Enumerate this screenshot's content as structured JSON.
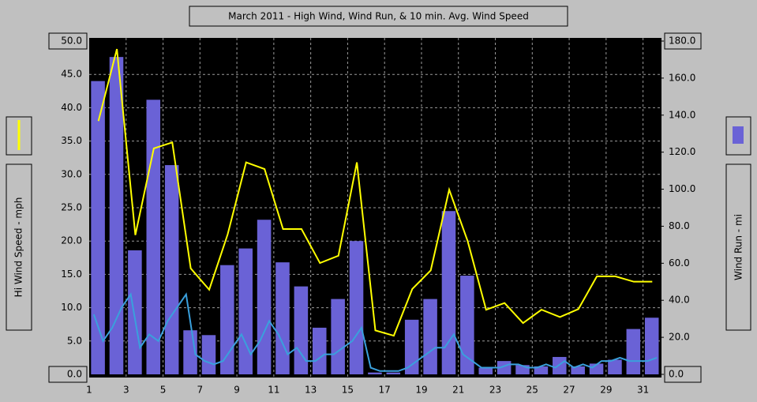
{
  "chart_data": {
    "type": "combo",
    "title": "March 2011 - High Wind, Wind Run, & 10 min. Avg. Wind Speed",
    "ylabel": "Hi Wind Speed - mph",
    "y2label": "Wind Run - mi",
    "xlim": [
      1,
      32
    ],
    "xticks": [
      1,
      3,
      5,
      7,
      9,
      11,
      13,
      15,
      17,
      19,
      21,
      23,
      25,
      27,
      29,
      31
    ],
    "ylim": [
      0,
      50
    ],
    "yticks": [
      {
        "value": 0,
        "label": "0.0"
      },
      {
        "value": 5,
        "label": "5.0"
      },
      {
        "value": 10,
        "label": "10.0"
      },
      {
        "value": 15,
        "label": "15.0"
      },
      {
        "value": 20,
        "label": "20.0"
      },
      {
        "value": 25,
        "label": "25.0"
      },
      {
        "value": 30,
        "label": "30.0"
      },
      {
        "value": 35,
        "label": "35.0"
      },
      {
        "value": 40,
        "label": "40.0"
      },
      {
        "value": 45,
        "label": "45.0"
      },
      {
        "value": 50,
        "label": "50.0"
      }
    ],
    "y2lim": [
      0,
      180
    ],
    "y2ticks": [
      {
        "value": 0,
        "label": "0.0"
      },
      {
        "value": 20,
        "label": "20.0"
      },
      {
        "value": 40,
        "label": "40.0"
      },
      {
        "value": 60,
        "label": "60.0"
      },
      {
        "value": 80,
        "label": "80.0"
      },
      {
        "value": 100,
        "label": "100.0"
      },
      {
        "value": 120,
        "label": "120.0"
      },
      {
        "value": 140,
        "label": "140.0"
      },
      {
        "value": 160,
        "label": "160.0"
      },
      {
        "value": 180,
        "label": "180.0"
      }
    ],
    "grid": true,
    "series": [
      {
        "type": "bar",
        "axis": "y2",
        "color": "#6a62d6",
        "x": [
          1,
          2,
          3,
          4,
          5,
          6,
          7,
          8,
          9,
          10,
          11,
          12,
          13,
          14,
          15,
          16,
          17,
          18,
          19,
          20,
          21,
          22,
          23,
          24,
          25,
          26,
          27,
          28,
          29,
          30,
          31
        ],
        "values": [
          158.4,
          171.4,
          67,
          148.3,
          113,
          23.8,
          21.2,
          59,
          68,
          83.5,
          60.5,
          47.5,
          25.2,
          40.7,
          72,
          1,
          1,
          29.5,
          40.7,
          88.2,
          53.3,
          3.6,
          7.2,
          5,
          4.3,
          9.4,
          4.3,
          5.8,
          7.9,
          24.5,
          30.6
        ]
      },
      {
        "type": "line",
        "axis": "y",
        "color": "#ffff00",
        "x": [
          1.5,
          2.5,
          3.5,
          4.5,
          5.5,
          6.5,
          7.5,
          8.5,
          9.5,
          10.5,
          11.5,
          12.5,
          13.5,
          14.5,
          15.5,
          16.5,
          17.5,
          18.5,
          19.5,
          20.5,
          21.5,
          22.5,
          23.5,
          24.5,
          25.5,
          26.5,
          27.5,
          28.5,
          29.5,
          30.5,
          31.5
        ],
        "values": [
          38.0,
          48.8,
          20.9,
          33.9,
          34.8,
          15.9,
          12.7,
          21.0,
          31.8,
          30.8,
          21.8,
          21.8,
          16.7,
          17.8,
          31.8,
          6.6,
          5.8,
          12.8,
          15.6,
          27.7,
          20.0,
          9.7,
          10.7,
          7.7,
          9.7,
          8.6,
          9.8,
          14.7,
          14.7,
          13.9,
          13.9
        ]
      },
      {
        "type": "line",
        "axis": "y",
        "color": "#3aa0dc",
        "x": [
          1.25,
          1.75,
          2.25,
          2.75,
          3.25,
          3.75,
          4.25,
          4.75,
          5.25,
          5.75,
          6.25,
          6.75,
          7.25,
          7.75,
          8.25,
          8.75,
          9.25,
          9.75,
          10.25,
          10.75,
          11.25,
          11.75,
          12.25,
          12.75,
          13.25,
          13.75,
          14.25,
          14.75,
          15.25,
          15.75,
          16.25,
          16.75,
          17.25,
          17.75,
          18.25,
          18.75,
          19.25,
          19.75,
          20.25,
          20.75,
          21.25,
          21.75,
          22.25,
          22.75,
          23.25,
          23.75,
          24.25,
          24.75,
          25.25,
          25.75,
          26.25,
          26.75,
          27.25,
          27.75,
          28.25,
          28.75,
          29.25,
          29.75,
          30.25,
          30.75,
          31.25,
          31.75
        ],
        "values": [
          9,
          5,
          7,
          10,
          12,
          4,
          6,
          5,
          8,
          10,
          12,
          3,
          2,
          1.5,
          2,
          4,
          6,
          3,
          5,
          8,
          6,
          3,
          4,
          2,
          2,
          3,
          3,
          4,
          5,
          7,
          1,
          0.5,
          0.5,
          0.5,
          1,
          2,
          3,
          4,
          4,
          6,
          3,
          2,
          1,
          1,
          1,
          1.5,
          1.5,
          1,
          1,
          1.5,
          1,
          2,
          1,
          1.5,
          1,
          2,
          2,
          2.5,
          2,
          2,
          2,
          2.5
        ]
      }
    ]
  }
}
